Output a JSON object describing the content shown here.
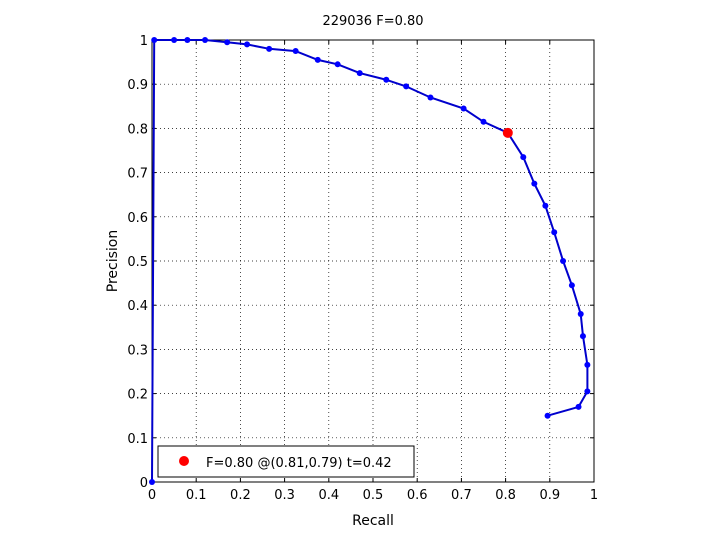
{
  "chart_data": {
    "type": "line",
    "title": "229036 F=0.80",
    "xlabel": "Recall",
    "ylabel": "Precision",
    "xlim": [
      0,
      1
    ],
    "ylim": [
      0,
      1
    ],
    "xticks": [
      "0",
      "0.1",
      "0.2",
      "0.3",
      "0.4",
      "0.5",
      "0.6",
      "0.7",
      "0.8",
      "0.9",
      "1"
    ],
    "yticks": [
      "0",
      "0.1",
      "0.2",
      "0.3",
      "0.4",
      "0.5",
      "0.6",
      "0.7",
      "0.8",
      "0.9",
      "1"
    ],
    "grid": true,
    "line_color": "#0000cc",
    "marker_color": "#0000ff",
    "highlight_color": "#ff0000",
    "series": [
      {
        "x": [
          0,
          0.005,
          0.05,
          0.08,
          0.12,
          0.17,
          0.215,
          0.265,
          0.325,
          0.375,
          0.42,
          0.47,
          0.53,
          0.575,
          0.63,
          0.705,
          0.75,
          0.805,
          0.84,
          0.865,
          0.89,
          0.91,
          0.93,
          0.95,
          0.97,
          0.975,
          0.985,
          0.985,
          0.965,
          0.895
        ],
        "y": [
          0,
          1.0,
          1.0,
          1.0,
          1.0,
          0.995,
          0.99,
          0.98,
          0.975,
          0.955,
          0.945,
          0.925,
          0.91,
          0.895,
          0.87,
          0.845,
          0.815,
          0.79,
          0.735,
          0.675,
          0.625,
          0.565,
          0.5,
          0.445,
          0.38,
          0.33,
          0.265,
          0.205,
          0.17,
          0.15
        ]
      }
    ],
    "highlight_point": {
      "x": 0.805,
      "y": 0.79
    },
    "legend": {
      "position": "bottom-left",
      "label": "F=0.80 @(0.81,0.79) t=0.42"
    }
  }
}
